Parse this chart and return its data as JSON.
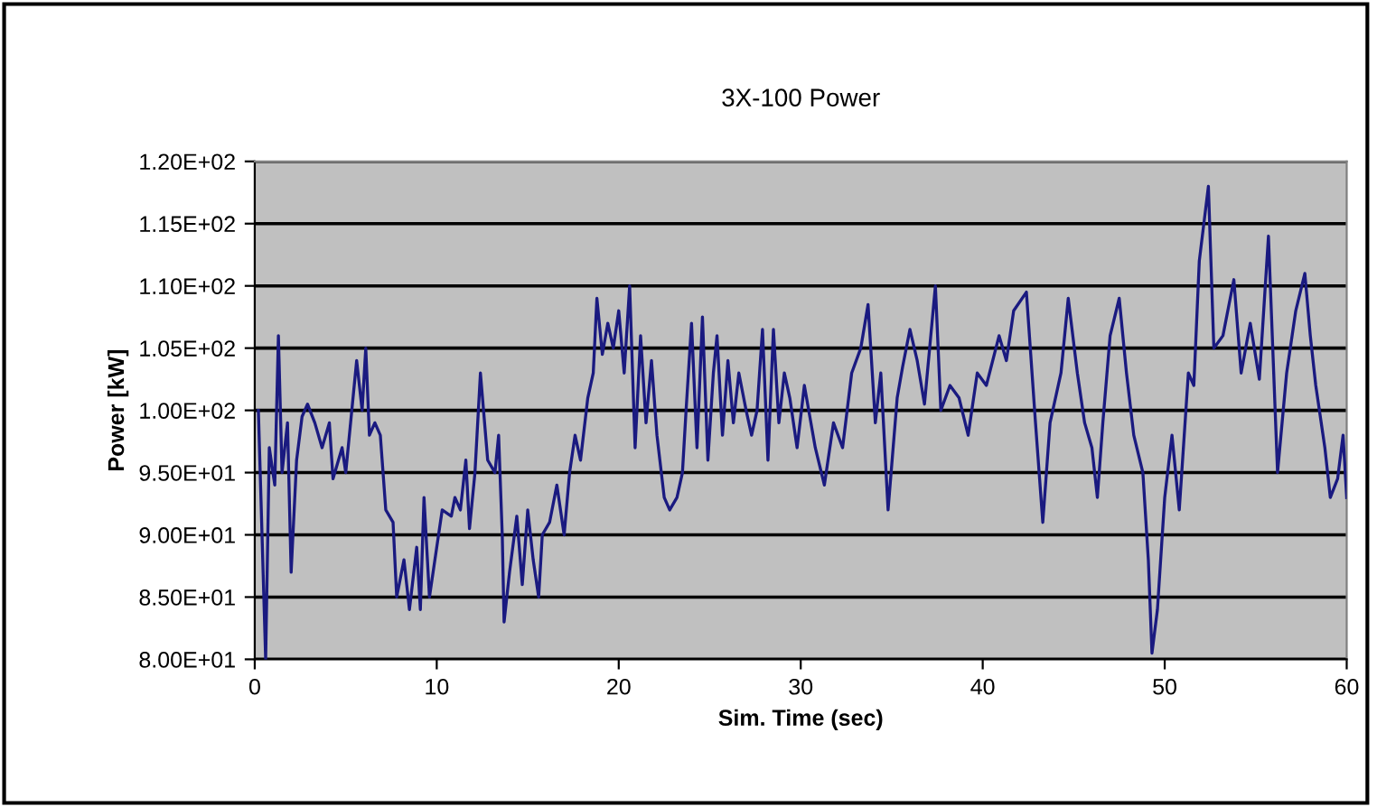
{
  "chart_data": {
    "type": "line",
    "title": "3X-100 Power",
    "xlabel": "Sim. Time (sec)",
    "ylabel": "Power [kW]",
    "xlim": [
      0,
      60
    ],
    "xticks": [
      0,
      10,
      20,
      30,
      40,
      50,
      60
    ],
    "ylim": [
      80,
      120
    ],
    "yticks": [
      {
        "value": 80,
        "label": "8.00E+01"
      },
      {
        "value": 85,
        "label": "8.50E+01"
      },
      {
        "value": 90,
        "label": "9.00E+01"
      },
      {
        "value": 95,
        "label": "9.50E+01"
      },
      {
        "value": 100,
        "label": "1.00E+02"
      },
      {
        "value": 105,
        "label": "1.05E+02"
      },
      {
        "value": 110,
        "label": "1.10E+02"
      },
      {
        "value": 115,
        "label": "1.15E+02"
      },
      {
        "value": 120,
        "label": "1.20E+02"
      }
    ],
    "grid": "y",
    "marker": "none",
    "line_style": "solid",
    "series": [
      {
        "color": "#1a1a80",
        "x": [
          0.2,
          0.6,
          0.8,
          1.1,
          1.3,
          1.5,
          1.8,
          2.0,
          2.3,
          2.6,
          2.9,
          3.3,
          3.7,
          4.1,
          4.3,
          4.8,
          5.0,
          5.3,
          5.6,
          5.9,
          6.1,
          6.3,
          6.6,
          6.9,
          7.2,
          7.6,
          7.8,
          8.2,
          8.5,
          8.9,
          9.1,
          9.3,
          9.6,
          10.0,
          10.3,
          10.8,
          11.0,
          11.3,
          11.6,
          11.8,
          12.1,
          12.4,
          12.8,
          13.2,
          13.4,
          13.6,
          13.7,
          14.0,
          14.4,
          14.7,
          15.0,
          15.3,
          15.6,
          15.8,
          16.2,
          16.6,
          17.0,
          17.3,
          17.6,
          17.9,
          18.3,
          18.6,
          18.8,
          19.1,
          19.4,
          19.7,
          20.0,
          20.3,
          20.6,
          20.9,
          21.2,
          21.5,
          21.8,
          22.1,
          22.5,
          22.8,
          23.2,
          23.5,
          23.7,
          24.0,
          24.3,
          24.6,
          24.9,
          25.2,
          25.4,
          25.7,
          26.0,
          26.3,
          26.6,
          27.0,
          27.3,
          27.6,
          27.9,
          28.2,
          28.5,
          28.8,
          29.1,
          29.4,
          29.8,
          30.2,
          30.8,
          31.3,
          31.8,
          32.3,
          32.8,
          33.3,
          33.7,
          34.1,
          34.4,
          34.8,
          35.3,
          35.6,
          36.0,
          36.4,
          36.8,
          37.4,
          37.7,
          38.2,
          38.7,
          39.2,
          39.7,
          40.2,
          40.9,
          41.3,
          41.7,
          42.4,
          42.9,
          43.3,
          43.7,
          44.3,
          44.7,
          45.2,
          45.6,
          46.0,
          46.3,
          46.6,
          47.0,
          47.5,
          47.9,
          48.3,
          48.8,
          49.1,
          49.3,
          49.6,
          50.0,
          50.4,
          50.8,
          51.3,
          51.6,
          51.9,
          52.4,
          52.7,
          53.2,
          53.8,
          54.2,
          54.7,
          55.2,
          55.7,
          56.2,
          56.7,
          57.2,
          57.7,
          58.0,
          58.3,
          58.8,
          59.1,
          59.5,
          59.8,
          60.0
        ],
        "values": [
          100,
          80,
          97,
          94,
          106,
          95,
          99,
          87,
          96,
          99.5,
          100.5,
          99,
          97,
          99,
          94.5,
          97,
          95,
          99.5,
          104,
          100,
          105,
          98,
          99,
          98,
          92,
          91,
          85,
          88,
          84,
          89,
          84,
          93,
          85,
          89,
          92,
          91.5,
          93,
          92,
          96,
          90.5,
          95,
          103,
          96,
          95,
          98,
          90,
          83,
          87,
          91.5,
          86,
          92,
          88,
          85,
          90,
          91,
          94,
          90,
          95,
          98,
          96,
          101,
          103,
          109,
          104.5,
          107,
          105,
          108,
          103,
          110,
          97,
          106,
          99,
          104,
          98,
          93,
          92,
          93,
          95,
          100,
          107,
          97,
          107.5,
          96,
          103,
          106,
          98,
          104,
          99,
          103,
          100,
          98,
          100,
          106.5,
          96,
          106.5,
          99,
          103,
          101,
          97,
          102,
          97,
          94,
          99,
          97,
          103,
          105,
          108.5,
          99,
          103,
          92,
          101,
          103.5,
          106.5,
          104,
          100.5,
          110,
          100,
          102,
          101,
          98,
          103,
          102,
          106,
          104,
          108,
          109.5,
          99,
          91,
          99,
          103,
          109,
          103,
          99,
          97,
          93,
          99,
          106,
          109,
          103,
          98,
          95,
          88,
          80.5,
          84,
          93,
          98,
          92,
          103,
          102,
          112,
          118,
          105,
          106,
          110.5,
          103,
          107,
          102.5,
          114,
          95,
          103,
          108,
          111,
          106,
          102,
          97,
          93,
          94.5,
          98,
          93
        ]
      }
    ]
  }
}
